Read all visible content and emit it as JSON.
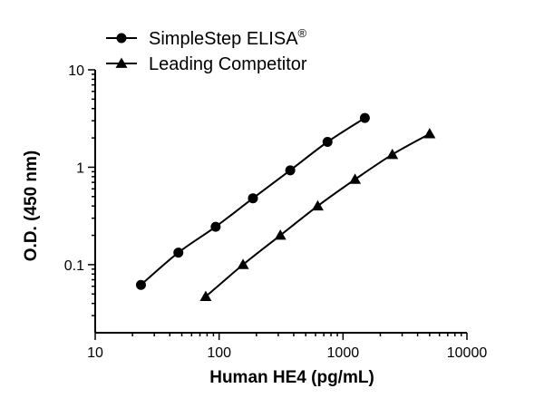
{
  "chart_data": {
    "type": "line",
    "title": "",
    "xlabel": "Human HE4 (pg/mL)",
    "ylabel": "O.D. (450 nm)",
    "x_scale": "log",
    "y_scale": "log",
    "xlim": [
      10,
      10000
    ],
    "ylim": [
      0.02,
      10
    ],
    "x_ticks": [
      10,
      100,
      1000,
      10000
    ],
    "x_tick_labels": [
      "10",
      "100",
      "1000",
      "10000"
    ],
    "y_ticks": [
      0.1,
      1,
      10
    ],
    "y_tick_labels": [
      "0.1",
      "1",
      "10"
    ],
    "grid": false,
    "legend_position": "top-left",
    "series": [
      {
        "name": "SimpleStep ELISA",
        "name_superscript": "®",
        "marker": "circle",
        "color": "#000000",
        "x": [
          23.4,
          46.9,
          93.8,
          187.5,
          375,
          750,
          1500
        ],
        "y": [
          0.062,
          0.133,
          0.245,
          0.48,
          0.93,
          1.82,
          3.2
        ]
      },
      {
        "name": "Leading Competitor",
        "marker": "triangle",
        "color": "#000000",
        "x": [
          78,
          156,
          312,
          625,
          1250,
          2500,
          5000
        ],
        "y": [
          0.047,
          0.1,
          0.2,
          0.4,
          0.75,
          1.35,
          2.2
        ]
      }
    ]
  }
}
